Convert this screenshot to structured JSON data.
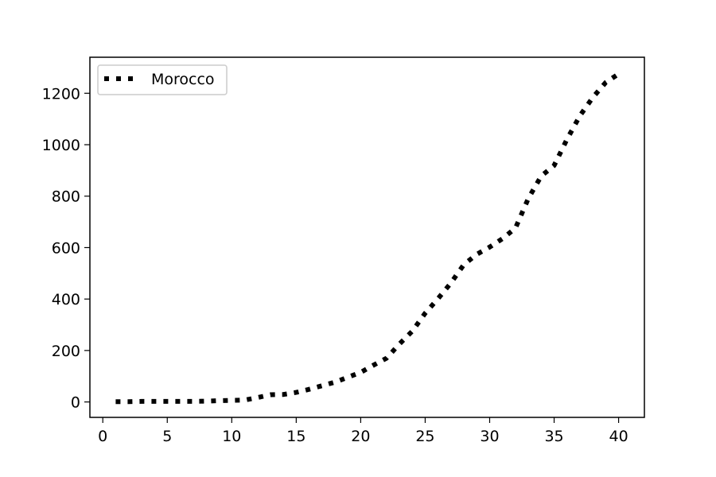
{
  "chart_data": {
    "type": "line",
    "title": "",
    "xlabel": "",
    "ylabel": "",
    "xlim": [
      -1,
      42
    ],
    "ylim": [
      -60,
      1340
    ],
    "x_ticks": [
      0,
      5,
      10,
      15,
      20,
      25,
      30,
      35,
      40
    ],
    "y_ticks": [
      0,
      200,
      400,
      600,
      800,
      1000,
      1200
    ],
    "grid": false,
    "legend_position": "top-left",
    "series": [
      {
        "name": "Morocco",
        "color": "#000000",
        "line_style": "dotted",
        "x": [
          1,
          2,
          3,
          4,
          5,
          6,
          7,
          8,
          9,
          10,
          11,
          12,
          13,
          14,
          15,
          16,
          17,
          18,
          19,
          20,
          21,
          22,
          23,
          24,
          25,
          26,
          27,
          28,
          29,
          30,
          31,
          32,
          33,
          34,
          35,
          36,
          37,
          38,
          39,
          40
        ],
        "y": [
          1,
          1,
          2,
          2,
          2,
          2,
          2,
          3,
          5,
          6,
          7,
          17,
          28,
          29,
          37,
          49,
          63,
          77,
          96,
          115,
          143,
          170,
          225,
          275,
          345,
          402,
          463,
          534,
          574,
          602,
          635,
          676,
          791,
          878,
          919,
          1021,
          1113,
          1184,
          1242,
          1275
        ]
      }
    ]
  }
}
